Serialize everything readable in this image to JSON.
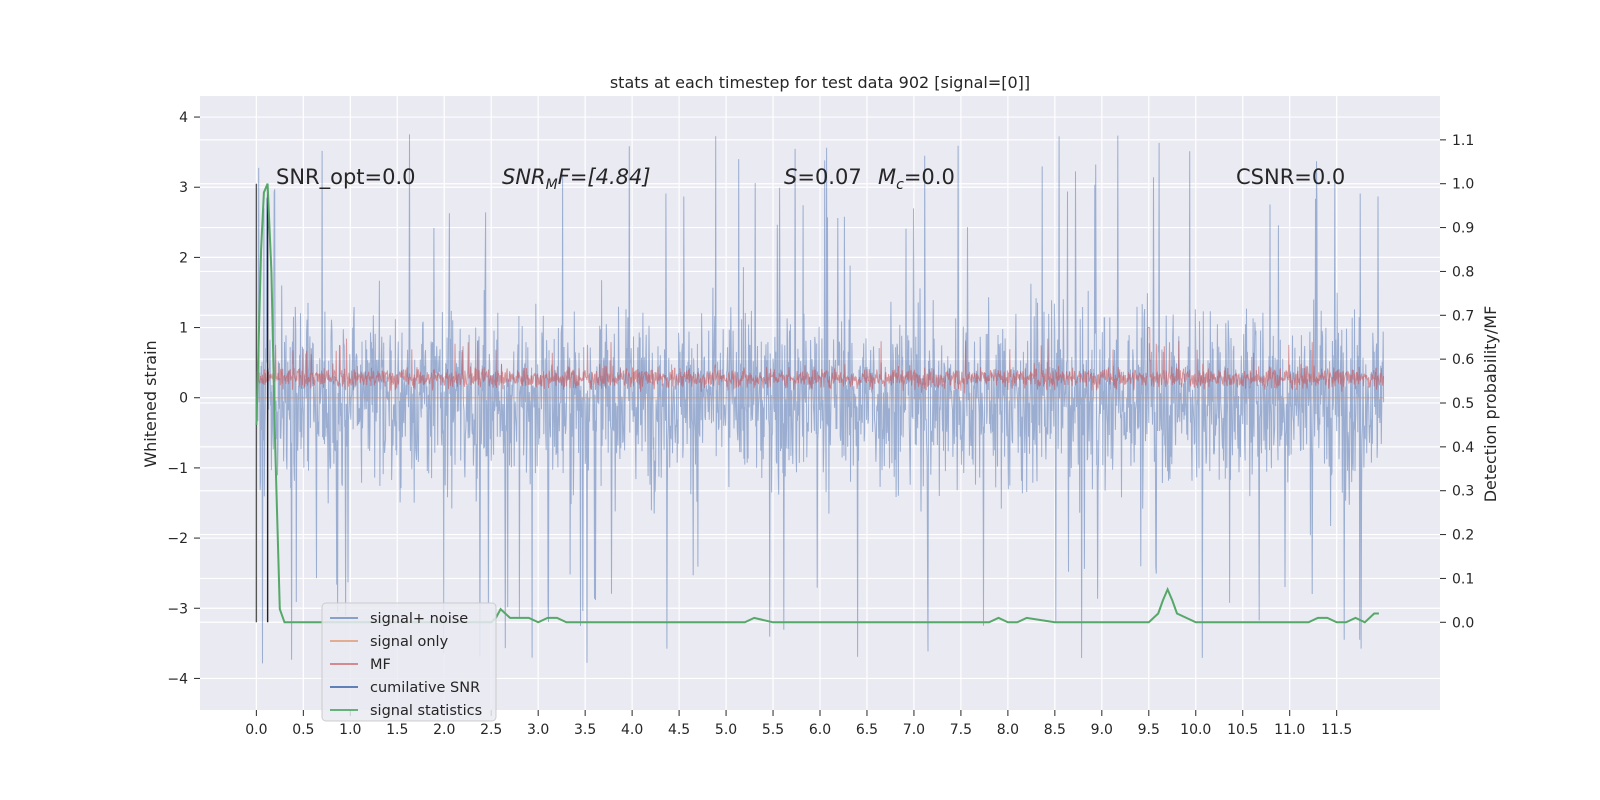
{
  "chart_data": {
    "type": "line",
    "title": "stats at each timestep for test data 902 [signal=[0]]",
    "xlabel": "",
    "ylabel": "Whitened strain",
    "ylabel_right": "Detection probability/MF",
    "xlim": [
      -0.6,
      12.6
    ],
    "ylim": [
      -4.45,
      4.3
    ],
    "ylim_right": [
      -0.2,
      1.2
    ],
    "grid": true,
    "legend_position": "lower-left",
    "x_ticks": [
      0.0,
      0.5,
      1.0,
      1.5,
      2.0,
      2.5,
      3.0,
      3.5,
      4.0,
      4.5,
      5.0,
      5.5,
      6.0,
      6.5,
      7.0,
      7.5,
      8.0,
      8.5,
      9.0,
      9.5,
      10.0,
      10.5,
      11.0,
      11.5
    ],
    "x_tick_labels": [
      "0.0",
      "0.5",
      "1.0",
      "1.5",
      "2.0",
      "2.5",
      "3.0",
      "3.5",
      "4.0",
      "4.5",
      "5.0",
      "5.5",
      "6.0",
      "6.5",
      "7.0",
      "7.5",
      "8.0",
      "8.5",
      "9.0",
      "9.5",
      "10.0",
      "10.5",
      "11.0",
      "11.5"
    ],
    "y_ticks": [
      -4,
      -3,
      -2,
      -1,
      0,
      1,
      2,
      3,
      4
    ],
    "y_tick_labels": [
      "−4",
      "−3",
      "−2",
      "−1",
      "0",
      "1",
      "2",
      "3",
      "4"
    ],
    "y_right_ticks": [
      0.0,
      0.1,
      0.2,
      0.3,
      0.4,
      0.5,
      0.6,
      0.7,
      0.8,
      0.9,
      1.0,
      1.1
    ],
    "y_right_tick_labels": [
      "0.0",
      "0.1",
      "0.2",
      "0.3",
      "0.4",
      "0.5",
      "0.6",
      "0.7",
      "0.8",
      "0.9",
      "1.0",
      "1.1"
    ],
    "annotations": {
      "snr_opt": "SNR_opt=0.0",
      "snr_mf_base": "SNR",
      "snr_mf_sub": "M",
      "snr_mf_rest": "F=[4.84]",
      "s_var": "S",
      "s_val": "=0.07",
      "mc_var": "M",
      "mc_sub": "c",
      "mc_val": "=0.0",
      "csnr": "CSNR=0.0"
    },
    "series": [
      {
        "name": "signal+ noise",
        "color": "#4c72b0",
        "axis": "left",
        "x_range": [
          0.0,
          12.0
        ],
        "typical_band": [
          -1.3,
          1.3
        ],
        "peak_range": [
          -4.1,
          3.9
        ]
      },
      {
        "name": "signal only",
        "color": "#dd8452",
        "axis": "left",
        "x": [
          0.0,
          12.0
        ],
        "y": [
          0.0,
          0.0
        ]
      },
      {
        "name": "MF",
        "color": "#c44e52",
        "axis": "left",
        "x_range": [
          0.0,
          12.0
        ],
        "typical_band": [
          0.05,
          0.55
        ],
        "peak_range": [
          -0.05,
          1.0
        ]
      },
      {
        "name": "cumilative SNR",
        "color": "#4c72b0",
        "axis": "left",
        "x": [
          0.0,
          12.0
        ],
        "y": [
          0.0,
          0.0
        ]
      },
      {
        "name": "signal statistics",
        "color": "#55a868",
        "axis": "right",
        "x": [
          0.0,
          0.02,
          0.05,
          0.08,
          0.12,
          0.16,
          0.2,
          0.25,
          0.3,
          0.4,
          0.6,
          1.0,
          1.5,
          2.0,
          2.2,
          2.35,
          2.45,
          2.5,
          2.55,
          2.6,
          2.65,
          2.7,
          2.75,
          2.8,
          2.9,
          3.0,
          3.1,
          3.2,
          3.3,
          3.5,
          4.0,
          4.5,
          5.0,
          5.2,
          5.3,
          5.5,
          6.0,
          6.5,
          7.0,
          7.5,
          7.8,
          7.9,
          8.0,
          8.1,
          8.2,
          8.5,
          9.0,
          9.4,
          9.5,
          9.55,
          9.6,
          9.65,
          9.7,
          9.75,
          9.8,
          9.9,
          10.0,
          10.5,
          11.0,
          11.2,
          11.3,
          11.4,
          11.5,
          11.6,
          11.7,
          11.8,
          11.9,
          11.95
        ],
        "y": [
          0.45,
          0.6,
          0.85,
          0.98,
          1.0,
          0.8,
          0.4,
          0.03,
          0.0,
          0.0,
          0.0,
          0.0,
          0.0,
          0.0,
          0.0,
          0.0,
          0.0,
          0.0,
          0.01,
          0.03,
          0.02,
          0.01,
          0.01,
          0.01,
          0.01,
          0.0,
          0.01,
          0.01,
          0.0,
          0.0,
          0.0,
          0.0,
          0.0,
          0.0,
          0.01,
          0.0,
          0.0,
          0.0,
          0.0,
          0.0,
          0.0,
          0.01,
          0.0,
          0.0,
          0.01,
          0.0,
          0.0,
          0.0,
          0.0,
          0.01,
          0.02,
          0.05,
          0.075,
          0.05,
          0.02,
          0.01,
          0.0,
          0.0,
          0.0,
          0.0,
          0.01,
          0.01,
          0.0,
          0.0,
          0.01,
          0.0,
          0.02,
          0.02
        ]
      }
    ],
    "vertical_markers": [
      0.0,
      0.12
    ]
  }
}
